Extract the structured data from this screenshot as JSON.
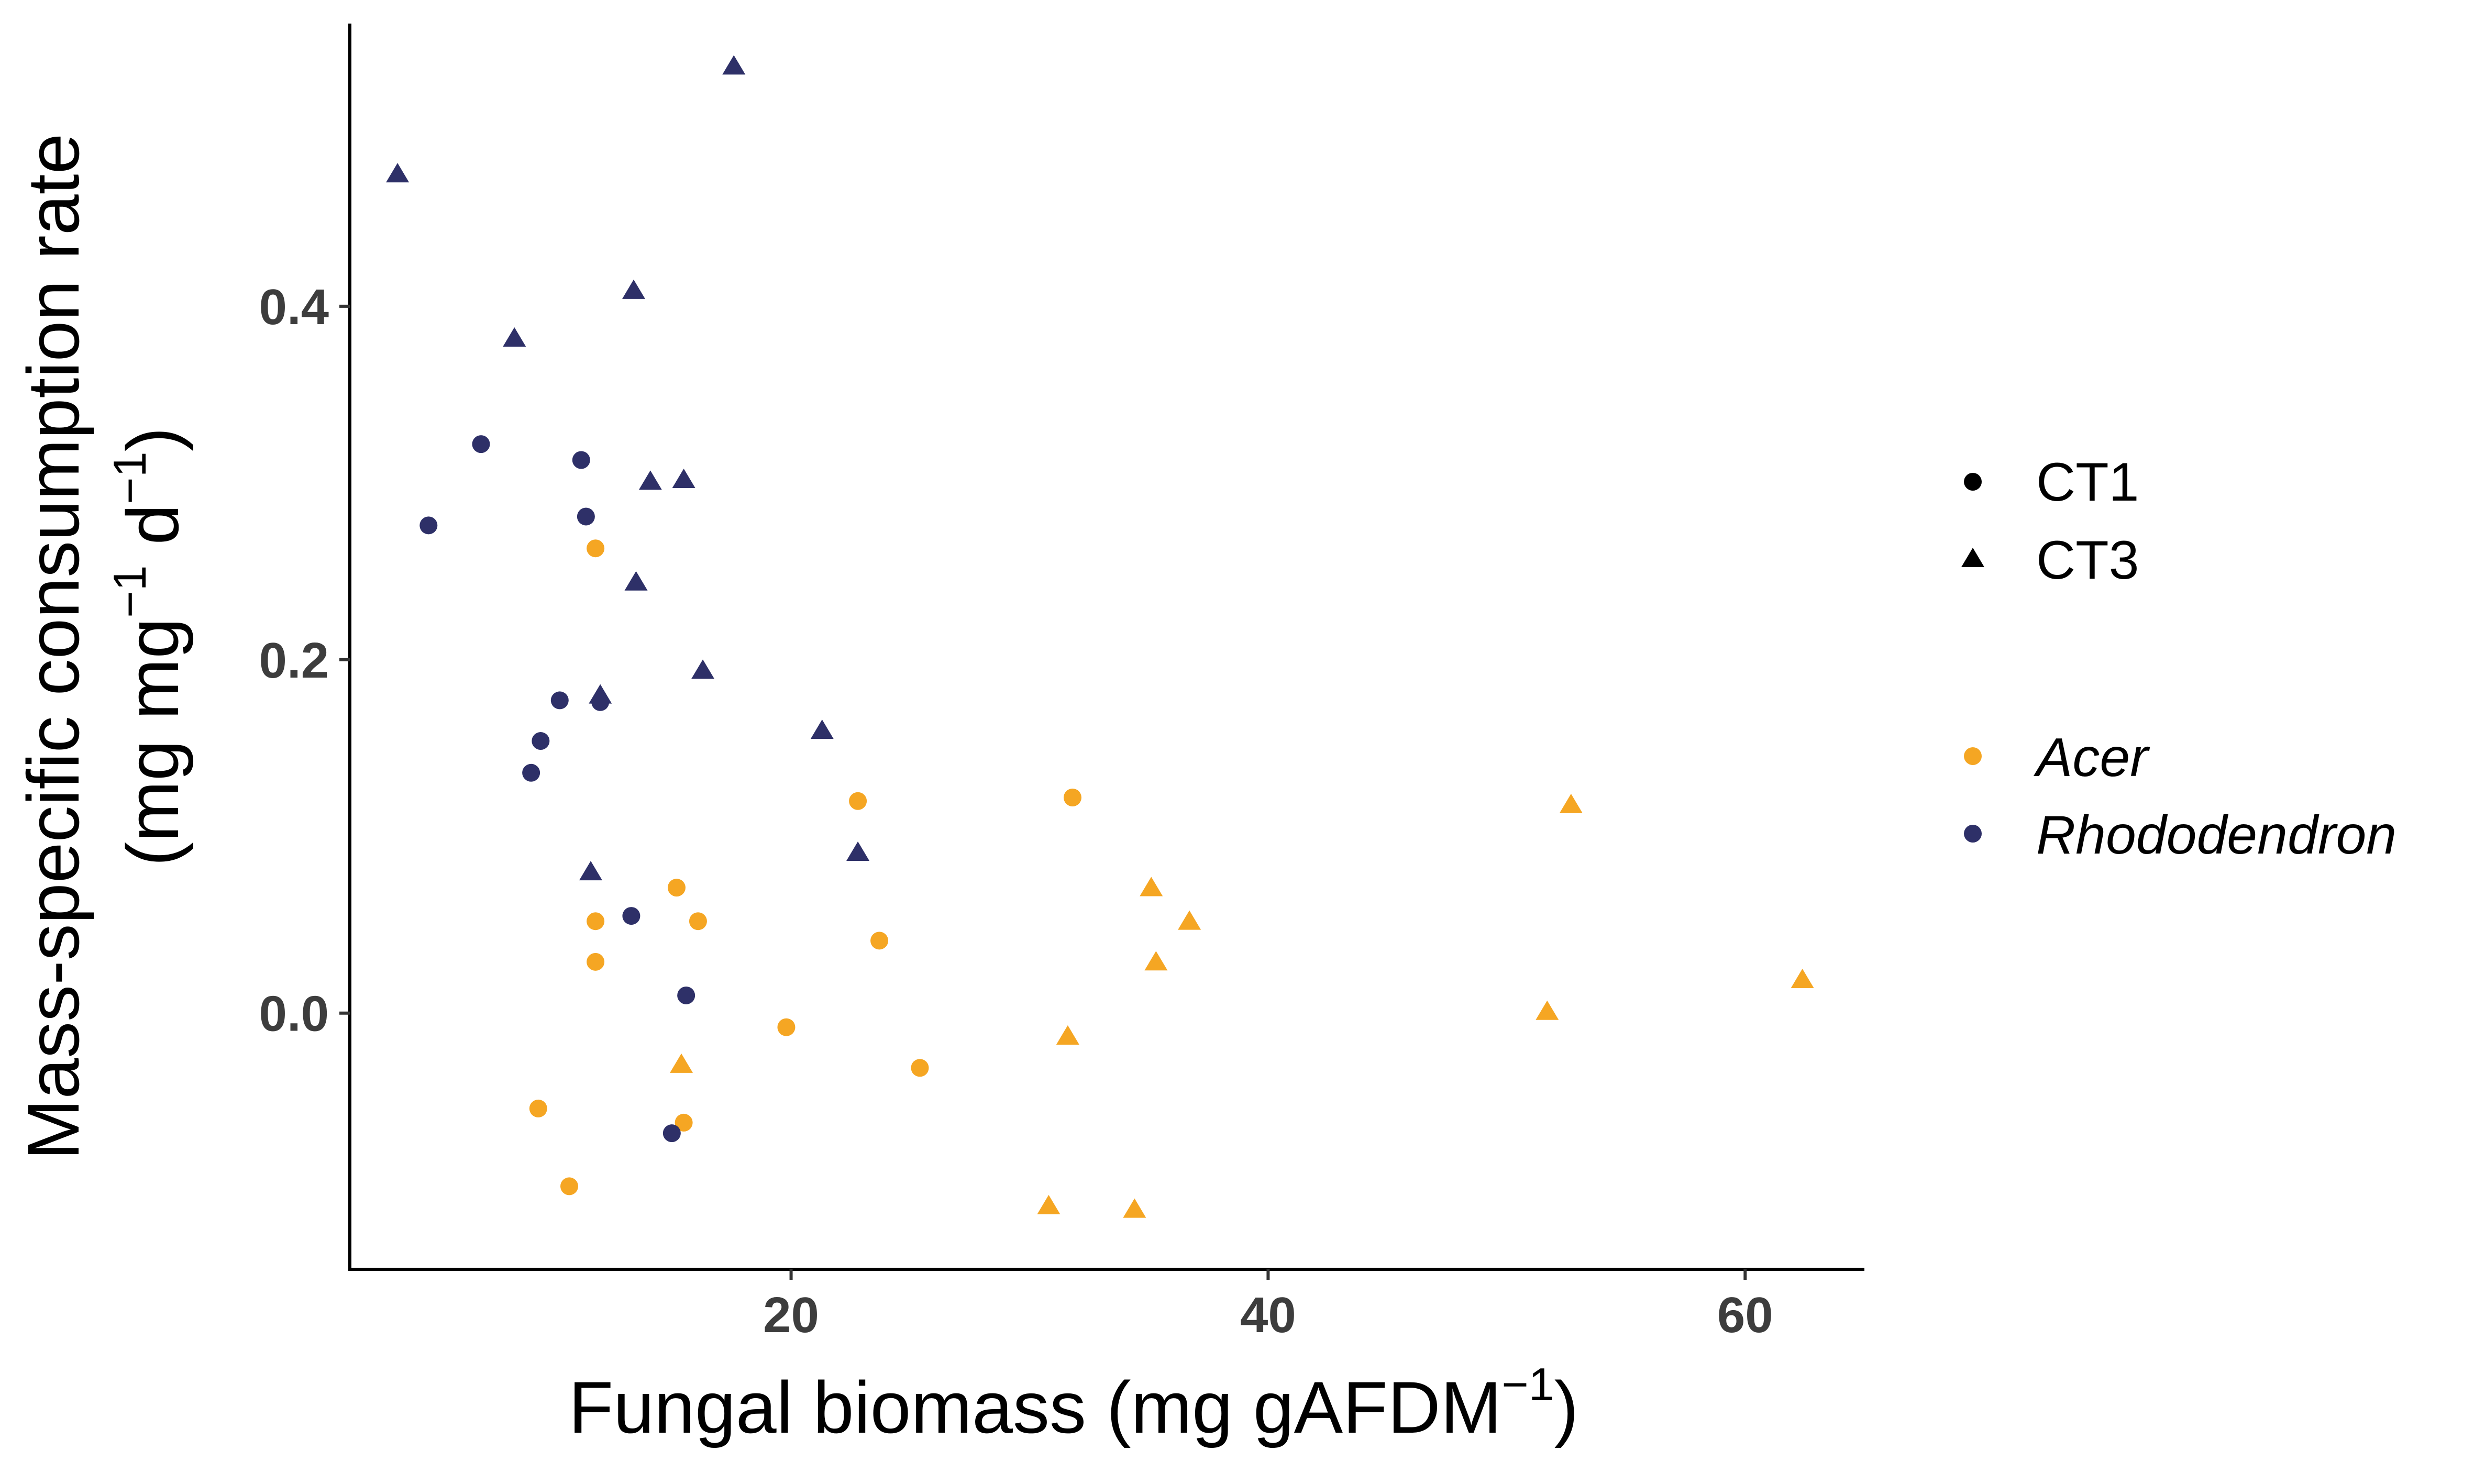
{
  "chart_data": {
    "type": "scatter",
    "xlabel_main": "Fungal biomass (mg gAFDM",
    "xlabel_sup": "−1",
    "xlabel_end": ")",
    "ylabel_line1": "Mass-specific consumption rate",
    "ylabel_line2_a": "(mg mg",
    "ylabel_line2_sup1": "−1",
    "ylabel_line2_b": " d",
    "ylabel_line2_sup2": "−1",
    "ylabel_line2_c": ")",
    "xlim": [
      1.5,
      65
    ],
    "ylim": [
      -0.145,
      0.56
    ],
    "xticks": [
      20,
      40,
      60
    ],
    "xtick_labels": [
      "20",
      "40",
      "60"
    ],
    "yticks": [
      0.0,
      0.2,
      0.4
    ],
    "ytick_labels": [
      "0.0",
      "0.2",
      "0.4"
    ],
    "grid": false,
    "legend_position": "right",
    "colors": {
      "Acer": "#F5A623",
      "Rhododendron": "#2E3068"
    },
    "shape_legend": [
      {
        "label": "CT1",
        "shape": "circle"
      },
      {
        "label": "CT3",
        "shape": "triangle"
      }
    ],
    "color_legend": [
      {
        "label": "Acer",
        "color": "#F5A623"
      },
      {
        "label": "Rhododendron",
        "color": "#2E3068"
      }
    ],
    "series": [
      {
        "name": "Acer",
        "shape": "circle",
        "color": "#F5A623",
        "points": [
          [
            11.8,
            0.263
          ],
          [
            22.8,
            0.12
          ],
          [
            31.8,
            0.122
          ],
          [
            15.2,
            0.071
          ],
          [
            11.8,
            0.052
          ],
          [
            16.1,
            0.052
          ],
          [
            23.7,
            0.041
          ],
          [
            11.8,
            0.029
          ],
          [
            19.8,
            -0.008
          ],
          [
            25.4,
            -0.031
          ],
          [
            9.4,
            -0.054
          ],
          [
            15.5,
            -0.062
          ],
          [
            10.7,
            -0.098
          ]
        ]
      },
      {
        "name": "Acer",
        "shape": "triangle",
        "color": "#F5A623",
        "points": [
          [
            52.7,
            0.117
          ],
          [
            35.1,
            0.07
          ],
          [
            36.7,
            0.051
          ],
          [
            35.3,
            0.028
          ],
          [
            62.4,
            0.018
          ],
          [
            51.7,
            0.0
          ],
          [
            31.6,
            -0.014
          ],
          [
            15.4,
            -0.03
          ],
          [
            30.8,
            -0.11
          ],
          [
            34.4,
            -0.112
          ]
        ]
      },
      {
        "name": "Rhododendron",
        "shape": "circle",
        "color": "#2E3068",
        "points": [
          [
            7.0,
            0.322
          ],
          [
            11.2,
            0.313
          ],
          [
            4.8,
            0.276
          ],
          [
            11.4,
            0.281
          ],
          [
            10.3,
            0.177
          ],
          [
            12.0,
            0.176
          ],
          [
            9.5,
            0.154
          ],
          [
            9.1,
            0.136
          ],
          [
            13.3,
            0.055
          ],
          [
            15.6,
            0.01
          ],
          [
            15.0,
            -0.068
          ]
        ]
      },
      {
        "name": "Rhododendron",
        "shape": "triangle",
        "color": "#2E3068",
        "points": [
          [
            17.6,
            0.535
          ],
          [
            3.5,
            0.474
          ],
          [
            13.4,
            0.408
          ],
          [
            8.4,
            0.381
          ],
          [
            14.1,
            0.3
          ],
          [
            15.5,
            0.301
          ],
          [
            13.5,
            0.243
          ],
          [
            16.3,
            0.193
          ],
          [
            12.0,
            0.179
          ],
          [
            21.3,
            0.159
          ],
          [
            22.8,
            0.09
          ],
          [
            11.6,
            0.079
          ]
        ]
      }
    ]
  }
}
